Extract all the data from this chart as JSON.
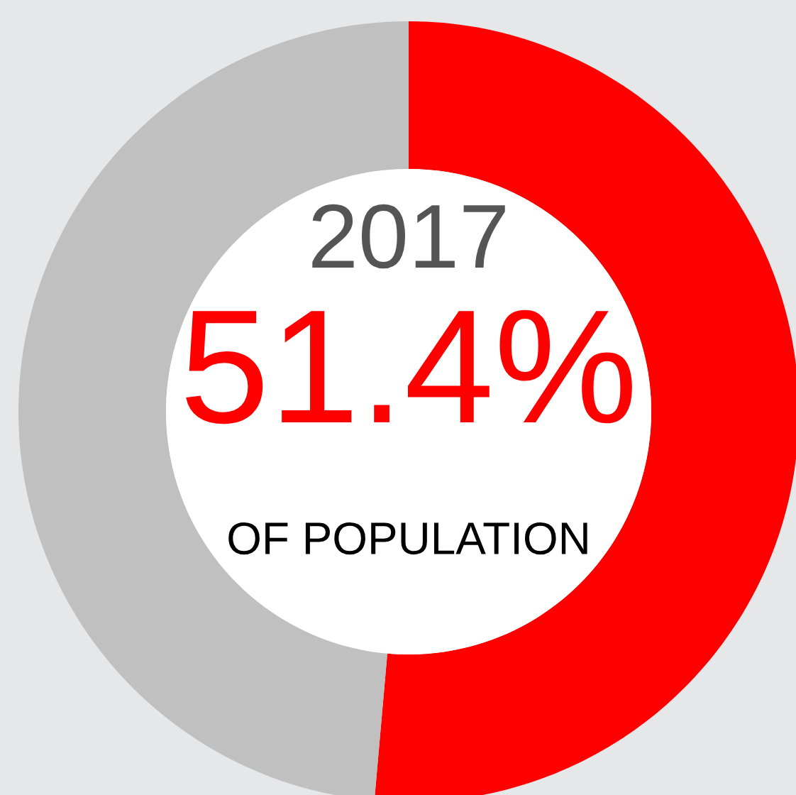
{
  "chart_data": {
    "type": "donut",
    "categories": [
      null,
      null
    ],
    "values": [
      51.4,
      48.6
    ],
    "colors": [
      "#ff0000",
      "#c0c0c0"
    ],
    "value_labels": [
      "51.4%",
      null
    ],
    "annotations": [
      "2017",
      "OF POPULATION"
    ]
  }
}
